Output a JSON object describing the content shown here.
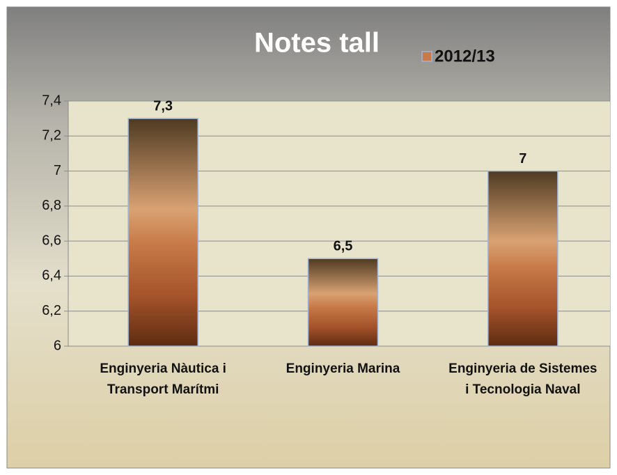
{
  "chart_data": {
    "type": "bar",
    "title": "Notes tall",
    "categories": [
      "Enginyeria Nàutica i\nTransport Marítmi",
      "Enginyeria Marina",
      "Enginyeria de Sistemes\ni Tecnologia Naval"
    ],
    "series": [
      {
        "name": "2012/13",
        "color": "#c87a48",
        "values": [
          7.3,
          6.5,
          7
        ],
        "value_labels": [
          "7,3",
          "6,5",
          "7"
        ]
      }
    ],
    "ylim": [
      6,
      7.4
    ],
    "yticks": [
      6,
      {
        "value": 6.2,
        "label": "6,2"
      },
      {
        "value": 6.4,
        "label": "6,4"
      },
      {
        "value": 6.6,
        "label": "6,6"
      },
      {
        "value": 6.8,
        "label": "6,8"
      },
      7,
      {
        "value": 7.2,
        "label": "7,2"
      },
      {
        "value": 7.4,
        "label": "7,4"
      }
    ],
    "grid": true,
    "legend": "top"
  }
}
